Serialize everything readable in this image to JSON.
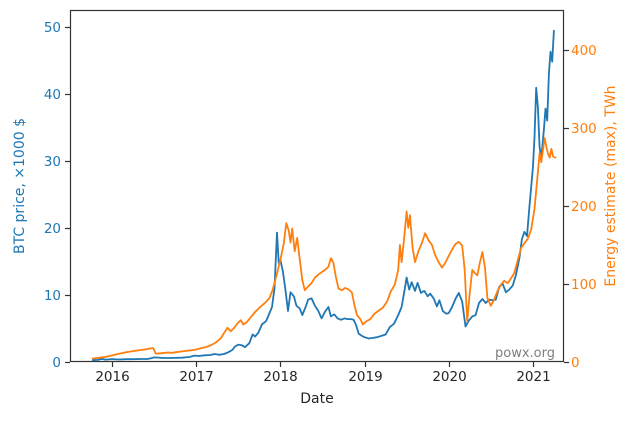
{
  "watermark": "powx.org",
  "chart_data": {
    "type": "line",
    "title": "",
    "xlabel": "Date",
    "ylabel_left": "BTC price, ×1000 $",
    "ylabel_right": "Energy estimate (max), TWh",
    "grid": false,
    "legend": "none",
    "x_range": [
      2015.5,
      2021.37
    ],
    "y_left_range": [
      0,
      52.5
    ],
    "y_right_range": [
      0,
      451
    ],
    "x_ticks": [
      2016,
      2017,
      2018,
      2019,
      2020,
      2021
    ],
    "y_left_ticks": [
      0,
      10,
      20,
      30,
      40,
      50
    ],
    "y_right_ticks": [
      0,
      100,
      200,
      300,
      400
    ],
    "colors": {
      "btc": "#1f77b4",
      "energy": "#ff7f0e",
      "spine": "#333333",
      "tick_text": "#262626",
      "watermark": "#7f7f7f"
    },
    "series": [
      {
        "name": "BTC price",
        "axis": "left",
        "color_key": "btc",
        "points": [
          [
            2015.77,
            0.27
          ],
          [
            2015.83,
            0.31
          ],
          [
            2015.88,
            0.46
          ],
          [
            2015.92,
            0.36
          ],
          [
            2016.0,
            0.43
          ],
          [
            2016.08,
            0.38
          ],
          [
            2016.17,
            0.42
          ],
          [
            2016.25,
            0.42
          ],
          [
            2016.33,
            0.45
          ],
          [
            2016.42,
            0.45
          ],
          [
            2016.47,
            0.58
          ],
          [
            2016.5,
            0.69
          ],
          [
            2016.55,
            0.66
          ],
          [
            2016.6,
            0.6
          ],
          [
            2016.67,
            0.6
          ],
          [
            2016.75,
            0.61
          ],
          [
            2016.83,
            0.64
          ],
          [
            2016.92,
            0.74
          ],
          [
            2016.98,
            0.96
          ],
          [
            2017.03,
            0.9
          ],
          [
            2017.1,
            1.0
          ],
          [
            2017.17,
            1.05
          ],
          [
            2017.22,
            1.19
          ],
          [
            2017.27,
            1.08
          ],
          [
            2017.33,
            1.2
          ],
          [
            2017.38,
            1.45
          ],
          [
            2017.43,
            1.8
          ],
          [
            2017.46,
            2.3
          ],
          [
            2017.5,
            2.6
          ],
          [
            2017.54,
            2.5
          ],
          [
            2017.58,
            2.2
          ],
          [
            2017.63,
            2.8
          ],
          [
            2017.67,
            4.1
          ],
          [
            2017.7,
            3.8
          ],
          [
            2017.74,
            4.4
          ],
          [
            2017.78,
            5.6
          ],
          [
            2017.83,
            6.1
          ],
          [
            2017.87,
            7.3
          ],
          [
            2017.9,
            8.2
          ],
          [
            2017.93,
            11.0
          ],
          [
            2017.96,
            19.3
          ],
          [
            2017.98,
            14.8
          ],
          [
            2018.0,
            15.2
          ],
          [
            2018.03,
            13.5
          ],
          [
            2018.06,
            10.8
          ],
          [
            2018.09,
            7.6
          ],
          [
            2018.12,
            10.4
          ],
          [
            2018.16,
            9.8
          ],
          [
            2018.19,
            8.4
          ],
          [
            2018.23,
            8.0
          ],
          [
            2018.26,
            7.0
          ],
          [
            2018.3,
            8.2
          ],
          [
            2018.33,
            9.3
          ],
          [
            2018.37,
            9.5
          ],
          [
            2018.41,
            8.4
          ],
          [
            2018.45,
            7.6
          ],
          [
            2018.49,
            6.5
          ],
          [
            2018.53,
            7.5
          ],
          [
            2018.57,
            8.2
          ],
          [
            2018.6,
            6.8
          ],
          [
            2018.64,
            7.1
          ],
          [
            2018.68,
            6.5
          ],
          [
            2018.72,
            6.3
          ],
          [
            2018.76,
            6.5
          ],
          [
            2018.8,
            6.4
          ],
          [
            2018.84,
            6.4
          ],
          [
            2018.87,
            6.3
          ],
          [
            2018.9,
            5.5
          ],
          [
            2018.93,
            4.2
          ],
          [
            2018.97,
            3.9
          ],
          [
            2019.0,
            3.7
          ],
          [
            2019.05,
            3.5
          ],
          [
            2019.1,
            3.6
          ],
          [
            2019.15,
            3.7
          ],
          [
            2019.2,
            3.9
          ],
          [
            2019.25,
            4.1
          ],
          [
            2019.3,
            5.2
          ],
          [
            2019.35,
            5.7
          ],
          [
            2019.4,
            7.0
          ],
          [
            2019.44,
            8.2
          ],
          [
            2019.48,
            11.0
          ],
          [
            2019.5,
            12.6
          ],
          [
            2019.53,
            10.8
          ],
          [
            2019.56,
            11.9
          ],
          [
            2019.6,
            10.6
          ],
          [
            2019.63,
            11.8
          ],
          [
            2019.67,
            10.3
          ],
          [
            2019.71,
            10.6
          ],
          [
            2019.75,
            9.8
          ],
          [
            2019.78,
            10.2
          ],
          [
            2019.82,
            9.5
          ],
          [
            2019.86,
            8.3
          ],
          [
            2019.89,
            9.2
          ],
          [
            2019.93,
            7.6
          ],
          [
            2019.97,
            7.2
          ],
          [
            2020.0,
            7.3
          ],
          [
            2020.04,
            8.2
          ],
          [
            2020.08,
            9.4
          ],
          [
            2020.12,
            10.3
          ],
          [
            2020.16,
            9.0
          ],
          [
            2020.2,
            5.3
          ],
          [
            2020.24,
            6.2
          ],
          [
            2020.28,
            6.8
          ],
          [
            2020.32,
            7.0
          ],
          [
            2020.36,
            8.8
          ],
          [
            2020.4,
            9.4
          ],
          [
            2020.44,
            8.8
          ],
          [
            2020.48,
            9.3
          ],
          [
            2020.52,
            9.2
          ],
          [
            2020.56,
            9.3
          ],
          [
            2020.6,
            11.2
          ],
          [
            2020.64,
            11.7
          ],
          [
            2020.68,
            10.4
          ],
          [
            2020.72,
            10.8
          ],
          [
            2020.76,
            11.4
          ],
          [
            2020.8,
            13.0
          ],
          [
            2020.84,
            15.5
          ],
          [
            2020.87,
            18.3
          ],
          [
            2020.9,
            19.4
          ],
          [
            2020.93,
            18.8
          ],
          [
            2020.96,
            23.3
          ],
          [
            2021.0,
            29.0
          ],
          [
            2021.02,
            33.5
          ],
          [
            2021.04,
            40.9
          ],
          [
            2021.06,
            38.0
          ],
          [
            2021.08,
            32.0
          ],
          [
            2021.1,
            30.5
          ],
          [
            2021.13,
            34.5
          ],
          [
            2021.15,
            37.8
          ],
          [
            2021.17,
            36.0
          ],
          [
            2021.19,
            43.0
          ],
          [
            2021.21,
            46.3
          ],
          [
            2021.23,
            44.8
          ],
          [
            2021.25,
            49.4
          ]
        ]
      },
      {
        "name": "Energy estimate (max)",
        "axis": "right",
        "color_key": "energy",
        "points": [
          [
            2015.77,
            4.5
          ],
          [
            2015.83,
            5.2
          ],
          [
            2015.9,
            6.2
          ],
          [
            2016.0,
            8.5
          ],
          [
            2016.08,
            10.5
          ],
          [
            2016.17,
            12.5
          ],
          [
            2016.25,
            14.0
          ],
          [
            2016.33,
            15.3
          ],
          [
            2016.4,
            16.2
          ],
          [
            2016.45,
            17.3
          ],
          [
            2016.49,
            17.8
          ],
          [
            2016.52,
            10.8
          ],
          [
            2016.58,
            11.2
          ],
          [
            2016.63,
            11.8
          ],
          [
            2016.67,
            12.2
          ],
          [
            2016.71,
            11.6
          ],
          [
            2016.76,
            12.6
          ],
          [
            2016.82,
            13.4
          ],
          [
            2016.88,
            14.2
          ],
          [
            2016.94,
            15.0
          ],
          [
            2017.0,
            16.0
          ],
          [
            2017.06,
            17.8
          ],
          [
            2017.12,
            19.2
          ],
          [
            2017.18,
            21.8
          ],
          [
            2017.24,
            25.5
          ],
          [
            2017.29,
            30.0
          ],
          [
            2017.33,
            37.0
          ],
          [
            2017.37,
            44.0
          ],
          [
            2017.41,
            39.5
          ],
          [
            2017.45,
            43.5
          ],
          [
            2017.49,
            49.5
          ],
          [
            2017.53,
            53.5
          ],
          [
            2017.56,
            48.0
          ],
          [
            2017.6,
            51.0
          ],
          [
            2017.65,
            57.5
          ],
          [
            2017.7,
            64.0
          ],
          [
            2017.76,
            70.5
          ],
          [
            2017.82,
            76.0
          ],
          [
            2017.87,
            82.0
          ],
          [
            2017.91,
            93.0
          ],
          [
            2017.94,
            105.0
          ],
          [
            2017.97,
            118.0
          ],
          [
            2018.0,
            131.0
          ],
          [
            2018.04,
            152.0
          ],
          [
            2018.07,
            178.0
          ],
          [
            2018.1,
            168.0
          ],
          [
            2018.12,
            153.0
          ],
          [
            2018.14,
            171.0
          ],
          [
            2018.17,
            142.0
          ],
          [
            2018.2,
            159.0
          ],
          [
            2018.23,
            132.0
          ],
          [
            2018.26,
            105.0
          ],
          [
            2018.29,
            92.0
          ],
          [
            2018.33,
            97.0
          ],
          [
            2018.37,
            101.0
          ],
          [
            2018.41,
            108.0
          ],
          [
            2018.45,
            112.0
          ],
          [
            2018.49,
            115.0
          ],
          [
            2018.53,
            118.0
          ],
          [
            2018.57,
            122.0
          ],
          [
            2018.6,
            133.0
          ],
          [
            2018.63,
            127.0
          ],
          [
            2018.66,
            109.0
          ],
          [
            2018.69,
            94.0
          ],
          [
            2018.73,
            92.0
          ],
          [
            2018.77,
            95.0
          ],
          [
            2018.81,
            93.0
          ],
          [
            2018.85,
            89.0
          ],
          [
            2018.88,
            73.0
          ],
          [
            2018.91,
            60.0
          ],
          [
            2018.95,
            55.0
          ],
          [
            2018.98,
            48.0
          ],
          [
            2019.02,
            52.0
          ],
          [
            2019.07,
            55.0
          ],
          [
            2019.12,
            62.0
          ],
          [
            2019.17,
            66.0
          ],
          [
            2019.22,
            70.0
          ],
          [
            2019.27,
            78.0
          ],
          [
            2019.31,
            90.0
          ],
          [
            2019.36,
            99.0
          ],
          [
            2019.4,
            118.0
          ],
          [
            2019.42,
            150.0
          ],
          [
            2019.44,
            128.0
          ],
          [
            2019.47,
            158.0
          ],
          [
            2019.5,
            193.0
          ],
          [
            2019.52,
            172.0
          ],
          [
            2019.54,
            188.0
          ],
          [
            2019.57,
            147.0
          ],
          [
            2019.6,
            128.0
          ],
          [
            2019.64,
            142.0
          ],
          [
            2019.68,
            152.0
          ],
          [
            2019.72,
            165.0
          ],
          [
            2019.76,
            156.0
          ],
          [
            2019.8,
            150.0
          ],
          [
            2019.84,
            137.0
          ],
          [
            2019.88,
            128.0
          ],
          [
            2019.92,
            121.0
          ],
          [
            2019.96,
            127.0
          ],
          [
            2020.0,
            136.0
          ],
          [
            2020.04,
            144.0
          ],
          [
            2020.08,
            151.0
          ],
          [
            2020.12,
            154.0
          ],
          [
            2020.16,
            149.0
          ],
          [
            2020.19,
            118.0
          ],
          [
            2020.22,
            52.0
          ],
          [
            2020.25,
            88.0
          ],
          [
            2020.28,
            118.0
          ],
          [
            2020.31,
            114.0
          ],
          [
            2020.34,
            111.0
          ],
          [
            2020.37,
            127.0
          ],
          [
            2020.4,
            141.0
          ],
          [
            2020.43,
            122.0
          ],
          [
            2020.46,
            82.0
          ],
          [
            2020.5,
            72.0
          ],
          [
            2020.54,
            80.0
          ],
          [
            2020.58,
            91.0
          ],
          [
            2020.62,
            99.0
          ],
          [
            2020.66,
            104.0
          ],
          [
            2020.7,
            101.0
          ],
          [
            2020.74,
            107.0
          ],
          [
            2020.78,
            114.0
          ],
          [
            2020.82,
            130.0
          ],
          [
            2020.86,
            146.0
          ],
          [
            2020.9,
            152.0
          ],
          [
            2020.94,
            158.0
          ],
          [
            2020.98,
            170.0
          ],
          [
            2021.02,
            196.0
          ],
          [
            2021.05,
            232.0
          ],
          [
            2021.08,
            268.0
          ],
          [
            2021.1,
            256.0
          ],
          [
            2021.12,
            272.0
          ],
          [
            2021.14,
            287.0
          ],
          [
            2021.16,
            276.0
          ],
          [
            2021.18,
            267.0
          ],
          [
            2021.2,
            262.0
          ],
          [
            2021.22,
            273.0
          ],
          [
            2021.24,
            263.0
          ],
          [
            2021.27,
            262.0
          ]
        ]
      }
    ]
  }
}
